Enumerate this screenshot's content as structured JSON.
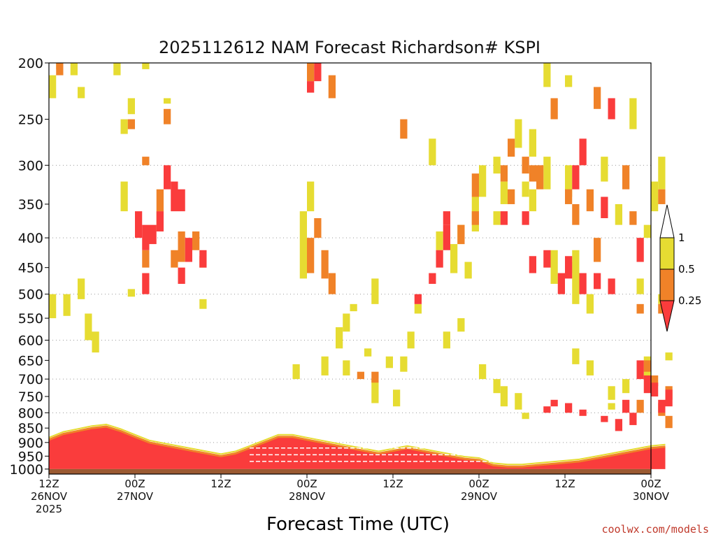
{
  "chart_data": {
    "type": "heatmap",
    "title": "2025112612 NAM Forecast Richardson# KSPI",
    "xlabel": "Forecast Time (UTC)",
    "ylabel": "",
    "credit": "coolwx.com/models",
    "y_scale": "log-pressure-inverted",
    "ylim": [
      1020,
      200
    ],
    "yticks": [
      200,
      250,
      300,
      350,
      400,
      450,
      500,
      550,
      600,
      650,
      700,
      750,
      800,
      850,
      900,
      950,
      1000
    ],
    "grid": "dotted horizontal lines at 300, 400, 500, 600, 700, 800, 900",
    "xlim": [
      0,
      84
    ],
    "xticks": [
      {
        "x": 0,
        "line1": "12Z",
        "line2": "26NOV",
        "line3": "2025"
      },
      {
        "x": 12,
        "line1": "00Z",
        "line2": "27NOV",
        "line3": ""
      },
      {
        "x": 24,
        "line1": "12Z",
        "line2": "",
        "line3": ""
      },
      {
        "x": 36,
        "line1": "00Z",
        "line2": "28NOV",
        "line3": ""
      },
      {
        "x": 48,
        "line1": "12Z",
        "line2": "",
        "line3": ""
      },
      {
        "x": 60,
        "line1": "00Z",
        "line2": "29NOV",
        "line3": ""
      },
      {
        "x": 72,
        "line1": "12Z",
        "line2": "",
        "line3": ""
      },
      {
        "x": 84,
        "line1": "00Z",
        "line2": "30NOV",
        "line3": ""
      }
    ],
    "legend": {
      "placement": "right",
      "labels": [
        "1",
        "0.5",
        "0.25"
      ],
      "colors": {
        "above": "#ffffff",
        "yellow": "#e6dc32",
        "orange": "#f08228",
        "red": "#fa3c3c"
      }
    },
    "ground_color": "#9b5a32",
    "series": [
      {
        "name": "0.5",
        "color": "#e6dc32",
        "cells": [
          [
            1,
            200,
            205
          ],
          [
            3,
            200,
            210
          ],
          [
            9,
            200,
            210
          ],
          [
            13,
            200,
            205
          ],
          [
            4,
            220,
            230
          ],
          [
            0,
            210,
            230
          ],
          [
            11,
            230,
            245
          ],
          [
            10,
            250,
            265
          ],
          [
            16,
            230,
            235
          ],
          [
            2,
            500,
            545
          ],
          [
            0,
            500,
            550
          ],
          [
            5,
            540,
            600
          ],
          [
            6,
            580,
            630
          ],
          [
            4,
            470,
            510
          ],
          [
            11,
            490,
            505
          ],
          [
            21,
            510,
            530
          ],
          [
            10,
            320,
            360
          ],
          [
            15,
            360,
            390
          ],
          [
            36,
            320,
            360
          ],
          [
            35,
            360,
            470
          ],
          [
            42,
            520,
            535
          ],
          [
            45,
            470,
            520
          ],
          [
            34,
            660,
            700
          ],
          [
            38,
            640,
            690
          ],
          [
            41,
            650,
            690
          ],
          [
            45,
            700,
            770
          ],
          [
            48,
            730,
            780
          ],
          [
            41,
            540,
            580
          ],
          [
            40,
            570,
            620
          ],
          [
            44,
            620,
            640
          ],
          [
            47,
            640,
            670
          ],
          [
            49,
            640,
            680
          ],
          [
            54,
            390,
            420
          ],
          [
            56,
            410,
            460
          ],
          [
            57,
            380,
            410
          ],
          [
            60,
            300,
            340
          ],
          [
            59,
            340,
            390
          ],
          [
            62,
            290,
            310
          ],
          [
            63,
            320,
            350
          ],
          [
            65,
            250,
            280
          ],
          [
            67,
            260,
            290
          ],
          [
            60,
            660,
            700
          ],
          [
            62,
            700,
            740
          ],
          [
            63,
            720,
            780
          ],
          [
            65,
            740,
            790
          ],
          [
            69,
            200,
            220
          ],
          [
            72,
            210,
            220
          ],
          [
            70,
            420,
            480
          ],
          [
            73,
            440,
            520
          ],
          [
            75,
            500,
            540
          ],
          [
            73,
            420,
            460
          ],
          [
            73,
            620,
            660
          ],
          [
            75,
            650,
            690
          ],
          [
            78,
            720,
            760
          ],
          [
            81,
            230,
            260
          ],
          [
            82,
            470,
            500
          ],
          [
            86,
            390,
            430
          ],
          [
            85,
            290,
            330
          ],
          [
            84,
            320,
            360
          ],
          [
            85,
            500,
            520
          ],
          [
            83,
            640,
            700
          ],
          [
            80,
            700,
            740
          ],
          [
            78,
            770,
            790
          ],
          [
            86,
            630,
            650
          ],
          [
            55,
            580,
            620
          ],
          [
            53,
            270,
            300
          ],
          [
            69,
            290,
            330
          ],
          [
            66,
            320,
            340
          ],
          [
            62,
            360,
            380
          ],
          [
            58,
            440,
            470
          ],
          [
            50,
            580,
            620
          ],
          [
            51,
            520,
            540
          ],
          [
            57,
            550,
            580
          ],
          [
            66,
            800,
            820
          ],
          [
            67,
            330,
            360
          ],
          [
            72,
            300,
            340
          ],
          [
            77,
            290,
            320
          ],
          [
            79,
            350,
            380
          ],
          [
            83,
            380,
            400
          ]
        ]
      },
      {
        "name": "0.25",
        "color": "#f08228",
        "cells": [
          [
            1,
            200,
            210
          ],
          [
            11,
            250,
            260
          ],
          [
            16,
            240,
            255
          ],
          [
            13,
            290,
            300
          ],
          [
            15,
            330,
            360
          ],
          [
            13,
            420,
            450
          ],
          [
            17,
            420,
            450
          ],
          [
            18,
            390,
            440
          ],
          [
            20,
            390,
            420
          ],
          [
            21,
            430,
            450
          ],
          [
            37,
            370,
            400
          ],
          [
            36,
            400,
            460
          ],
          [
            38,
            420,
            470
          ],
          [
            39,
            460,
            500
          ],
          [
            36,
            200,
            215
          ],
          [
            39,
            210,
            230
          ],
          [
            43,
            680,
            700
          ],
          [
            45,
            680,
            710
          ],
          [
            59,
            310,
            340
          ],
          [
            59,
            360,
            380
          ],
          [
            57,
            380,
            410
          ],
          [
            64,
            270,
            290
          ],
          [
            63,
            300,
            320
          ],
          [
            66,
            290,
            310
          ],
          [
            68,
            300,
            330
          ],
          [
            64,
            330,
            350
          ],
          [
            67,
            300,
            320
          ],
          [
            72,
            330,
            350
          ],
          [
            75,
            330,
            360
          ],
          [
            81,
            360,
            380
          ],
          [
            76,
            400,
            440
          ],
          [
            80,
            300,
            330
          ],
          [
            85,
            330,
            350
          ],
          [
            84,
            690,
            720
          ],
          [
            83,
            650,
            680
          ],
          [
            82,
            760,
            800
          ],
          [
            85,
            770,
            810
          ],
          [
            86,
            720,
            760
          ],
          [
            86,
            810,
            850
          ],
          [
            85,
            520,
            540
          ],
          [
            76,
            220,
            240
          ],
          [
            82,
            520,
            540
          ],
          [
            49,
            250,
            270
          ],
          [
            70,
            230,
            250
          ],
          [
            73,
            350,
            380
          ]
        ]
      },
      {
        "name": "0.25-red",
        "color": "#fa3c3c",
        "cells": [
          [
            37,
            200,
            215
          ],
          [
            36,
            215,
            225
          ],
          [
            12,
            360,
            400
          ],
          [
            13,
            380,
            420
          ],
          [
            14,
            380,
            410
          ],
          [
            17,
            320,
            360
          ],
          [
            15,
            360,
            390
          ],
          [
            16,
            300,
            330
          ],
          [
            18,
            330,
            360
          ],
          [
            19,
            400,
            440
          ],
          [
            21,
            420,
            450
          ],
          [
            13,
            460,
            500
          ],
          [
            18,
            450,
            480
          ],
          [
            55,
            380,
            420
          ],
          [
            55,
            360,
            380
          ],
          [
            53,
            460,
            480
          ],
          [
            51,
            500,
            520
          ],
          [
            54,
            420,
            450
          ],
          [
            67,
            430,
            460
          ],
          [
            69,
            420,
            450
          ],
          [
            72,
            430,
            470
          ],
          [
            71,
            460,
            500
          ],
          [
            74,
            460,
            500
          ],
          [
            76,
            460,
            490
          ],
          [
            73,
            300,
            330
          ],
          [
            74,
            270,
            300
          ],
          [
            78,
            230,
            250
          ],
          [
            77,
            340,
            370
          ],
          [
            78,
            470,
            500
          ],
          [
            82,
            400,
            440
          ],
          [
            82,
            650,
            700
          ],
          [
            83,
            690,
            740
          ],
          [
            84,
            710,
            750
          ],
          [
            85,
            760,
            800
          ],
          [
            86,
            730,
            780
          ],
          [
            80,
            760,
            800
          ],
          [
            81,
            800,
            840
          ],
          [
            77,
            810,
            830
          ],
          [
            79,
            820,
            860
          ],
          [
            69,
            780,
            800
          ],
          [
            70,
            760,
            780
          ],
          [
            72,
            770,
            800
          ],
          [
            74,
            790,
            810
          ],
          [
            63,
            360,
            380
          ],
          [
            66,
            360,
            380
          ]
        ]
      },
      {
        "name": "boundary-layer",
        "color": "#fa3c3c",
        "profile": [
          [
            0,
            890
          ],
          [
            2,
            870
          ],
          [
            4,
            860
          ],
          [
            6,
            850
          ],
          [
            8,
            845
          ],
          [
            10,
            860
          ],
          [
            12,
            880
          ],
          [
            14,
            900
          ],
          [
            16,
            910
          ],
          [
            18,
            920
          ],
          [
            20,
            930
          ],
          [
            22,
            940
          ],
          [
            24,
            950
          ],
          [
            26,
            940
          ],
          [
            28,
            920
          ],
          [
            30,
            900
          ],
          [
            32,
            880
          ],
          [
            34,
            880
          ],
          [
            36,
            890
          ],
          [
            38,
            900
          ],
          [
            40,
            910
          ],
          [
            42,
            920
          ],
          [
            44,
            930
          ],
          [
            46,
            940
          ],
          [
            48,
            930
          ],
          [
            50,
            920
          ],
          [
            52,
            930
          ],
          [
            54,
            940
          ],
          [
            56,
            950
          ],
          [
            58,
            960
          ],
          [
            60,
            965
          ],
          [
            62,
            985
          ],
          [
            64,
            990
          ],
          [
            66,
            990
          ],
          [
            68,
            985
          ],
          [
            70,
            980
          ],
          [
            72,
            975
          ],
          [
            74,
            970
          ],
          [
            76,
            960
          ],
          [
            78,
            950
          ],
          [
            80,
            940
          ],
          [
            82,
            930
          ],
          [
            84,
            920
          ],
          [
            86,
            915
          ]
        ]
      }
    ]
  }
}
